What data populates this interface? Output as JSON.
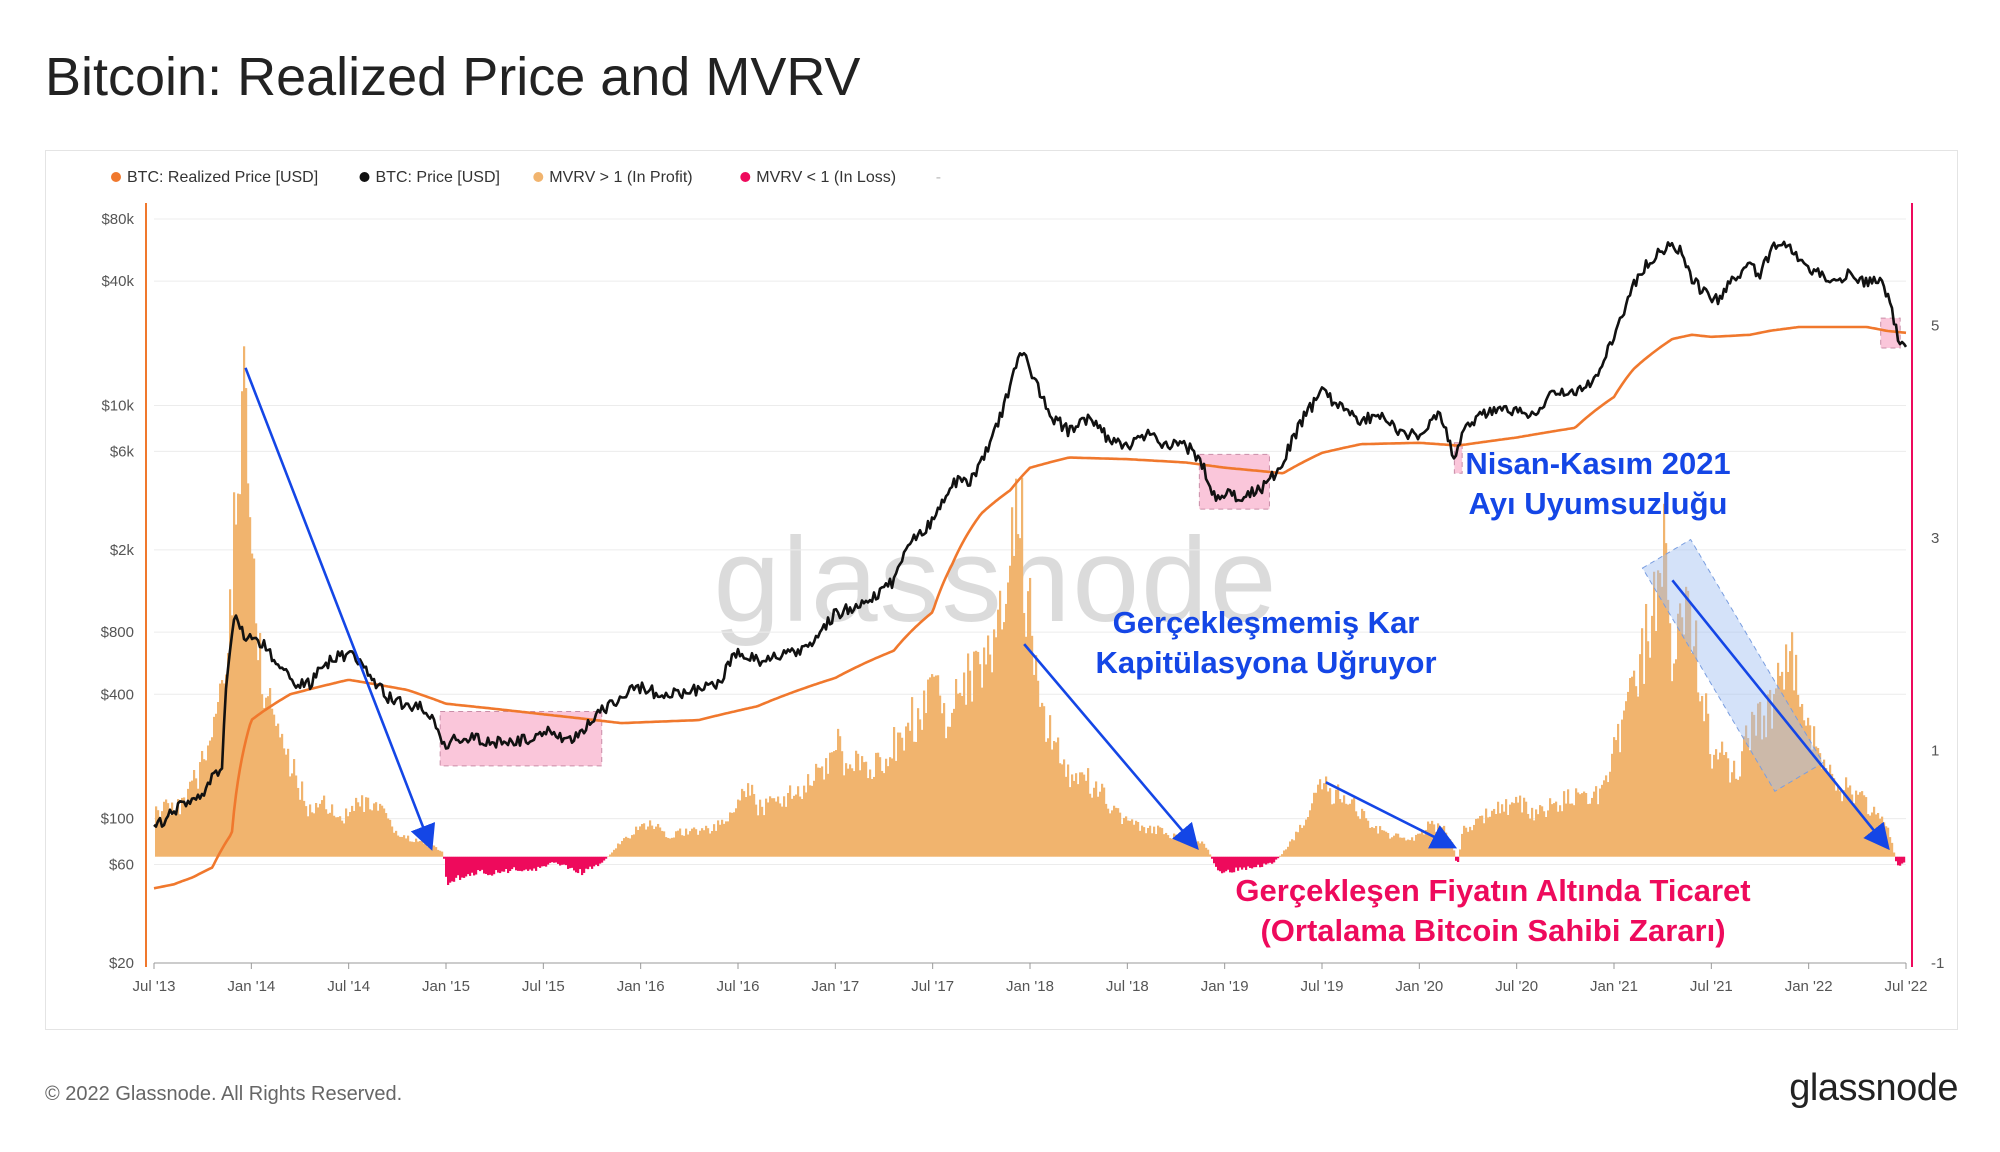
{
  "header": {
    "title": "Bitcoin: Realized Price and MVRV"
  },
  "footer": {
    "copyright": "© 2022 Glassnode. All Rights Reserved.",
    "brand": "glassnode"
  },
  "colors": {
    "realized_price": "#f0782d",
    "price": "#111111",
    "profit": "#f1b46e",
    "loss": "#ee0a5c",
    "annotation_blue": "#1446e6",
    "annotation_pink": "#ee0a5c",
    "loss_box": "#f7a8c6",
    "blue_box": "#9fbff2"
  },
  "chart_data": {
    "type": "line",
    "title": "Bitcoin: Realized Price and MVRV",
    "watermark": "glassnode",
    "legend": [
      {
        "label": "BTC: Realized Price [USD]",
        "color": "#f0782d"
      },
      {
        "label": "BTC: Price [USD]",
        "color": "#111111"
      },
      {
        "label": "MVRV > 1 (In Profit)",
        "color": "#f1b46e"
      },
      {
        "label": "MVRV < 1 (In Loss)",
        "color": "#ee0a5c"
      }
    ],
    "x_ticks": [
      "Jul '13",
      "Jan '14",
      "Jul '14",
      "Jan '15",
      "Jul '15",
      "Jan '16",
      "Jul '16",
      "Jan '17",
      "Jul '17",
      "Jan '18",
      "Jul '18",
      "Jan '19",
      "Jul '19",
      "Jan '20",
      "Jul '20",
      "Jan '21",
      "Jul '21",
      "Jan '22",
      "Jul '22"
    ],
    "x_range": [
      2013.5,
      2022.5
    ],
    "y_left": {
      "scale": "log",
      "range": [
        20,
        80000
      ],
      "ticks": [
        {
          "v": 80000,
          "label": "$80k"
        },
        {
          "v": 40000,
          "label": "$40k"
        },
        {
          "v": 10000,
          "label": "$10k"
        },
        {
          "v": 6000,
          "label": "$6k"
        },
        {
          "v": 2000,
          "label": "$2k"
        },
        {
          "v": 800,
          "label": "$800"
        },
        {
          "v": 400,
          "label": "$400"
        },
        {
          "v": 100,
          "label": "$100"
        },
        {
          "v": 60,
          "label": "$60"
        },
        {
          "v": 20,
          "label": "$20"
        }
      ]
    },
    "y_right": {
      "range": [
        -1,
        6
      ],
      "ticks": [
        {
          "v": 5,
          "label": "5"
        },
        {
          "v": 3,
          "label": "3"
        },
        {
          "v": 1,
          "label": "1"
        },
        {
          "v": -1,
          "label": "-1"
        }
      ]
    },
    "mvrv_baseline": 0,
    "series": [
      {
        "name": "BTC: Price [USD]",
        "x": [
          2013.5,
          2013.6,
          2013.75,
          2013.85,
          2013.92,
          2013.97,
          2014.0,
          2014.1,
          2014.2,
          2014.3,
          2014.4,
          2014.5,
          2014.6,
          2014.7,
          2014.8,
          2014.9,
          2014.98,
          2015.03,
          2015.1,
          2015.2,
          2015.3,
          2015.4,
          2015.5,
          2015.6,
          2015.7,
          2015.8,
          2015.87,
          2015.95,
          2016.0,
          2016.1,
          2016.2,
          2016.3,
          2016.4,
          2016.5,
          2016.6,
          2016.7,
          2016.8,
          2016.9,
          2017.0,
          2017.1,
          2017.2,
          2017.3,
          2017.4,
          2017.45,
          2017.5,
          2017.6,
          2017.7,
          2017.8,
          2017.87,
          2017.96,
          2018.02,
          2018.1,
          2018.2,
          2018.3,
          2018.4,
          2018.5,
          2018.6,
          2018.7,
          2018.8,
          2018.87,
          2018.95,
          2019.0,
          2019.1,
          2019.2,
          2019.3,
          2019.4,
          2019.5,
          2019.6,
          2019.7,
          2019.8,
          2019.9,
          2020.0,
          2020.1,
          2020.18,
          2020.2,
          2020.3,
          2020.4,
          2020.5,
          2020.6,
          2020.7,
          2020.8,
          2020.9,
          2020.97,
          2021.05,
          2021.12,
          2021.2,
          2021.28,
          2021.35,
          2021.4,
          2021.47,
          2021.55,
          2021.6,
          2021.7,
          2021.75,
          2021.85,
          2021.9,
          2022.0,
          2022.1,
          2022.2,
          2022.3,
          2022.37,
          2022.42,
          2022.46,
          2022.5
        ],
        "values": [
          88,
          110,
          130,
          180,
          1000,
          750,
          800,
          620,
          460,
          450,
          580,
          630,
          500,
          390,
          350,
          340,
          220,
          240,
          250,
          240,
          230,
          240,
          270,
          240,
          260,
          330,
          370,
          420,
          430,
          400,
          410,
          420,
          450,
          650,
          580,
          600,
          640,
          740,
          980,
          1050,
          1200,
          1400,
          2300,
          2500,
          2700,
          4200,
          4400,
          6500,
          10000,
          18500,
          13500,
          9000,
          7500,
          8500,
          7000,
          6400,
          7400,
          6400,
          6400,
          5500,
          3600,
          3800,
          3600,
          4000,
          5200,
          8500,
          11500,
          10000,
          8300,
          9200,
          7400,
          7200,
          9500,
          5300,
          6700,
          8800,
          9600,
          9200,
          9300,
          11800,
          11200,
          13500,
          18500,
          29000,
          41000,
          52000,
          58000,
          55000,
          40000,
          35000,
          32000,
          40000,
          48000,
          43000,
          63000,
          57000,
          47000,
          39000,
          43000,
          39000,
          40000,
          30000,
          21000,
          19500
        ]
      },
      {
        "name": "BTC: Realized Price [USD]",
        "x": [
          2013.5,
          2013.6,
          2013.7,
          2013.8,
          2013.9,
          2014.0,
          2014.2,
          2014.5,
          2014.8,
          2015.0,
          2015.5,
          2015.9,
          2016.3,
          2016.6,
          2017.0,
          2017.3,
          2017.5,
          2017.6,
          2017.75,
          2017.9,
          2018.0,
          2018.2,
          2018.5,
          2018.8,
          2019.0,
          2019.3,
          2019.5,
          2019.7,
          2020.0,
          2020.2,
          2020.5,
          2020.8,
          2021.0,
          2021.1,
          2021.2,
          2021.3,
          2021.4,
          2021.5,
          2021.7,
          2021.8,
          2021.95,
          2022.1,
          2022.3,
          2022.4,
          2022.5
        ],
        "values": [
          46,
          48,
          52,
          58,
          85,
          300,
          400,
          470,
          420,
          360,
          320,
          290,
          300,
          350,
          480,
          650,
          1000,
          1700,
          3000,
          3900,
          5000,
          5600,
          5500,
          5300,
          5000,
          4700,
          5900,
          6500,
          6600,
          6400,
          7000,
          7800,
          11000,
          15000,
          18000,
          21000,
          22000,
          21500,
          22000,
          23000,
          24000,
          24000,
          24000,
          23000,
          22500
        ]
      },
      {
        "name": "MVRV",
        "x": [
          2013.5,
          2013.55,
          2013.65,
          2013.75,
          2013.82,
          2013.88,
          2013.92,
          2013.97,
          2014.0,
          2014.05,
          2014.1,
          2014.2,
          2014.3,
          2014.35,
          2014.45,
          2014.55,
          2014.65,
          2014.75,
          2014.85,
          2014.92,
          2014.98,
          2015.0,
          2015.05,
          2015.15,
          2015.25,
          2015.35,
          2015.45,
          2015.55,
          2015.62,
          2015.7,
          2015.8,
          2015.85,
          2015.9,
          2015.98,
          2016.05,
          2016.15,
          2016.25,
          2016.35,
          2016.45,
          2016.5,
          2016.55,
          2016.6,
          2016.7,
          2016.8,
          2016.9,
          2017.0,
          2017.05,
          2017.15,
          2017.25,
          2017.35,
          2017.45,
          2017.5,
          2017.55,
          2017.6,
          2017.7,
          2017.78,
          2017.86,
          2017.93,
          2017.97,
          2018.02,
          2018.08,
          2018.18,
          2018.28,
          2018.38,
          2018.48,
          2018.58,
          2018.68,
          2018.78,
          2018.85,
          2018.9,
          2018.95,
          2019.0,
          2019.05,
          2019.15,
          2019.25,
          2019.3,
          2019.4,
          2019.48,
          2019.55,
          2019.65,
          2019.75,
          2019.85,
          2019.95,
          2020.05,
          2020.12,
          2020.17,
          2020.19,
          2020.22,
          2020.3,
          2020.4,
          2020.5,
          2020.6,
          2020.7,
          2020.8,
          2020.9,
          2020.97,
          2021.05,
          2021.12,
          2021.18,
          2021.25,
          2021.3,
          2021.35,
          2021.4,
          2021.45,
          2021.5,
          2021.55,
          2021.6,
          2021.7,
          2021.78,
          2021.85,
          2021.92,
          2022.0,
          2022.08,
          2022.15,
          2022.25,
          2022.32,
          2022.38,
          2022.42,
          2022.45,
          2022.5
        ],
        "values": [
          0.4,
          0.45,
          0.5,
          0.9,
          1.3,
          2.0,
          3.8,
          4.5,
          2.6,
          1.7,
          1.4,
          0.85,
          0.4,
          0.55,
          0.35,
          0.5,
          0.45,
          0.2,
          0.15,
          0.1,
          0.05,
          -0.25,
          -0.2,
          -0.15,
          -0.15,
          -0.12,
          -0.12,
          -0.05,
          -0.1,
          -0.15,
          -0.05,
          0.05,
          0.15,
          0.25,
          0.3,
          0.2,
          0.25,
          0.25,
          0.35,
          0.55,
          0.65,
          0.45,
          0.55,
          0.6,
          0.75,
          1.05,
          0.85,
          0.85,
          0.95,
          1.15,
          1.45,
          1.95,
          1.35,
          1.4,
          1.7,
          1.75,
          2.45,
          3.6,
          2.6,
          1.9,
          1.3,
          0.8,
          0.75,
          0.55,
          0.35,
          0.25,
          0.25,
          0.15,
          0.15,
          0.1,
          -0.1,
          -0.15,
          -0.12,
          -0.1,
          -0.05,
          0.05,
          0.3,
          0.75,
          0.6,
          0.5,
          0.3,
          0.2,
          0.15,
          0.3,
          0.25,
          0.1,
          -0.1,
          0.25,
          0.35,
          0.45,
          0.5,
          0.4,
          0.5,
          0.6,
          0.55,
          0.8,
          1.3,
          1.7,
          2.2,
          2.9,
          1.8,
          2.4,
          2.2,
          1.6,
          1.0,
          0.95,
          0.75,
          1.15,
          1.3,
          1.65,
          1.8,
          1.2,
          0.85,
          0.65,
          0.6,
          0.45,
          0.35,
          0.15,
          -0.1,
          -0.05
        ]
      }
    ],
    "annotations": [
      {
        "text": "Gerçekleşmemiş Kar",
        "color": "#1446e6"
      },
      {
        "text": "Kapitülasyona Uğruyor",
        "color": "#1446e6"
      },
      {
        "text": "Nisan-Kasım 2021",
        "color": "#1446e6"
      },
      {
        "text": "Ayı Uyumsuzluğu",
        "color": "#1446e6"
      },
      {
        "text": "Gerçekleşen Fiyatın Altında Ticaret",
        "color": "#ee0a5c"
      },
      {
        "text": "(Ortalama Bitcoin Sahibi Zararı)",
        "color": "#ee0a5c"
      }
    ],
    "highlight_periods": [
      {
        "name": "2015 bear market below realized price",
        "x_start": 2014.97,
        "x_end": 2015.8,
        "y_low": 180,
        "y_high": 330
      },
      {
        "name": "2018-2019 bear market below realized price",
        "x_start": 2018.87,
        "x_end": 2019.23,
        "y_low": 3150,
        "y_high": 5800
      },
      {
        "name": "March 2020 crash",
        "x_start": 2020.18,
        "x_end": 2020.22,
        "y_low": 4700,
        "y_high": 6600
      },
      {
        "name": "2022 below realized price",
        "x_start": 2022.37,
        "x_end": 2022.47,
        "y_low": 19000,
        "y_high": 26500
      }
    ],
    "trend_arrows": [
      {
        "name": "2014 decline",
        "x1": 2013.97,
        "y1": 4.6,
        "x2": 2014.92,
        "y2": 0.1
      },
      {
        "name": "2018 decline",
        "x1": 2017.97,
        "y1": 2.0,
        "x2": 2018.85,
        "y2": 0.1
      },
      {
        "name": "2019 decline",
        "x1": 2019.52,
        "y1": 0.7,
        "x2": 2020.17,
        "y2": 0.1
      },
      {
        "name": "2021 decline",
        "x1": 2021.3,
        "y1": 2.6,
        "x2": 2022.4,
        "y2": 0.1
      }
    ],
    "bear_divergence_band": {
      "x1": 2021.27,
      "x2": 2021.95,
      "y1": 2.85,
      "y2": 0.75
    }
  }
}
